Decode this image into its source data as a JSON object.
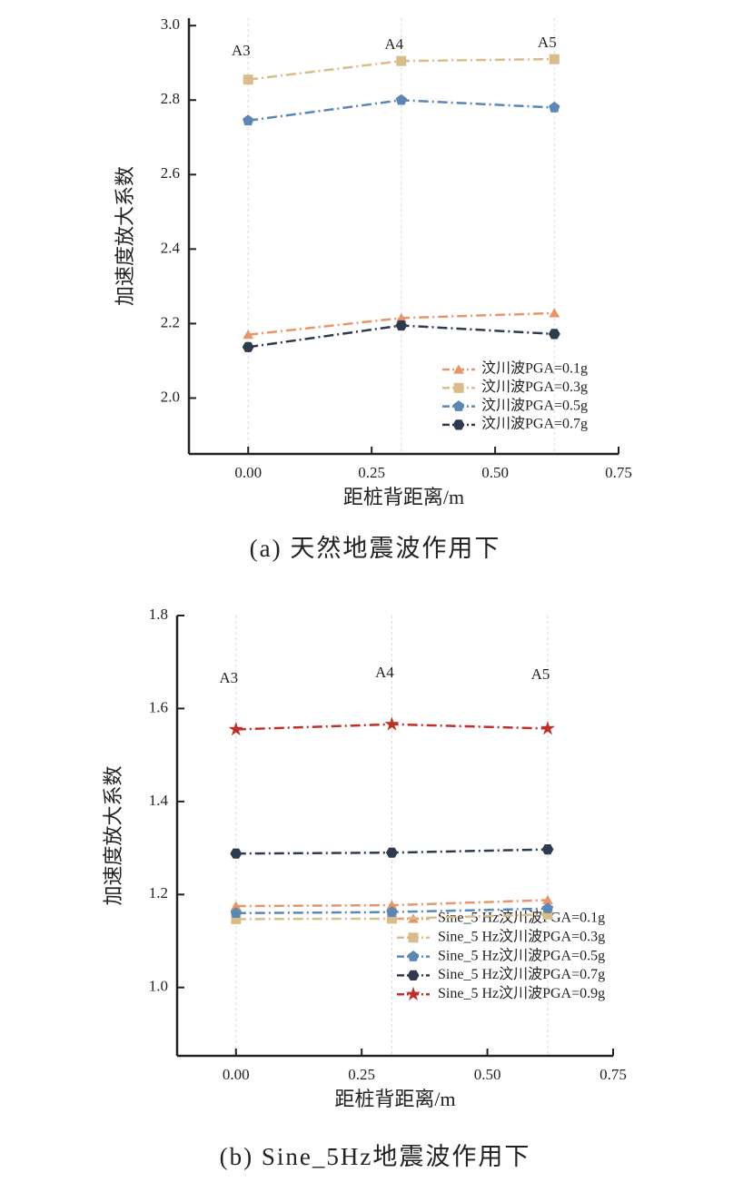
{
  "chart_data": [
    {
      "type": "line",
      "caption": "(a) 天然地震波作用下",
      "x_label": "距桩背距离/m",
      "y_label": "加速度放大系数",
      "annotations": [
        "A3",
        "A4",
        "A5"
      ],
      "x": [
        0,
        0.31,
        0.62
      ],
      "series": [
        {
          "name": "汶川波PGA=0.1g",
          "color": "#e8956a",
          "marker": "triangle",
          "values": [
            2.17,
            2.215,
            2.228
          ]
        },
        {
          "name": "汶川波PGA=0.3g",
          "color": "#d9bb8c",
          "marker": "square",
          "values": [
            2.855,
            2.905,
            2.91
          ]
        },
        {
          "name": "汶川波PGA=0.5g",
          "color": "#5b87b5",
          "marker": "pentagon",
          "values": [
            2.745,
            2.8,
            2.78
          ]
        },
        {
          "name": "汶川波PGA=0.7g",
          "color": "#2e3b4e",
          "marker": "hexagon",
          "values": [
            2.137,
            2.195,
            2.172
          ]
        }
      ],
      "xlim": [
        -0.12,
        0.75
      ],
      "xticks": [
        {
          "value": 0,
          "label": "0.00"
        },
        0.25,
        {
          "value": 0.5,
          "label": "0.50"
        },
        0.75
      ],
      "ylim": [
        1.85,
        3.02
      ],
      "yticks": [
        {
          "value": 2,
          "label": "2.0"
        },
        2.2,
        2.4,
        2.6,
        2.8,
        {
          "value": 3,
          "label": "3.0"
        }
      ],
      "grid": "x-data",
      "legend": "lower right"
    },
    {
      "type": "line",
      "caption": "(b) Sine_5Hz地震波作用下",
      "x_label": "距桩背距离/m",
      "y_label": "加速度放大系数",
      "annotations": [
        "A3",
        "A4",
        "A5"
      ],
      "x": [
        0,
        0.31,
        0.62
      ],
      "series": [
        {
          "name": "Sine_5 Hz汶川波PGA=0.1g",
          "color": "#e8956a",
          "marker": "triangle",
          "values": [
            1.175,
            1.177,
            1.188
          ]
        },
        {
          "name": "Sine_5 Hz汶川波PGA=0.3g",
          "color": "#d9bb8c",
          "marker": "square",
          "values": [
            1.147,
            1.148,
            1.157
          ]
        },
        {
          "name": "Sine_5 Hz汶川波PGA=0.5g",
          "color": "#5b87b5",
          "marker": "pentagon",
          "values": [
            1.16,
            1.162,
            1.17
          ]
        },
        {
          "name": "Sine_5 Hz汶川波PGA=0.7g",
          "color": "#2e3b4e",
          "marker": "hexagon",
          "values": [
            1.288,
            1.29,
            1.297
          ]
        },
        {
          "name": "Sine_5 Hz汶川波PGA=0.9g",
          "color": "#c0302b",
          "marker": "star",
          "values": [
            1.555,
            1.566,
            1.557
          ]
        }
      ],
      "xlim": [
        -0.117,
        0.75
      ],
      "xticks": [
        {
          "value": 0,
          "label": "0.00"
        },
        0.25,
        {
          "value": 0.5,
          "label": "0.50"
        },
        0.75
      ],
      "ylim": [
        0.853,
        1.8
      ],
      "yticks": [
        {
          "value": 1,
          "label": "1.0"
        },
        1.2,
        1.4,
        1.6,
        1.8
      ],
      "grid": "x-data",
      "legend": "lower right"
    }
  ]
}
